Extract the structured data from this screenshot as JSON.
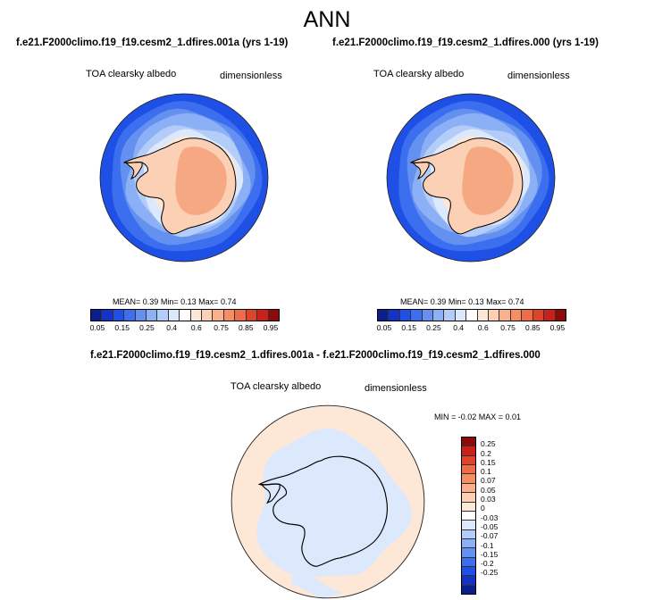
{
  "figure_title": "ANN",
  "panels": {
    "left": {
      "subtitle": "f.e21.F2000climo.f19_f19.cesm2_1.dfires.001a (yrs 1-19)",
      "variable": "TOA clearsky albedo",
      "units": "dimensionless",
      "stats": {
        "mean_label": "MEAN=",
        "mean": "0.39",
        "min_label": "Min=",
        "min": "0.13",
        "max_label": "Max=",
        "max": "0.74"
      }
    },
    "right": {
      "subtitle": "f.e21.F2000climo.f19_f19.cesm2_1.dfires.000 (yrs 1-19)",
      "variable": "TOA clearsky albedo",
      "units": "dimensionless",
      "stats": {
        "mean_label": "MEAN=",
        "mean": "0.39",
        "min_label": "Min=",
        "min": "0.13",
        "max_label": "Max=",
        "max": "0.74"
      }
    },
    "diff": {
      "subtitle": "f.e21.F2000climo.f19_f19.cesm2_1.dfires.001a - f.e21.F2000climo.f19_f19.cesm2_1.dfires.000",
      "variable": "TOA clearsky albedo",
      "units": "dimensionless",
      "minmax_text": "MIN =  -0.02 MAX =  0.01"
    }
  },
  "abs_colorbar": {
    "colors": [
      "#0a1e8c",
      "#1432c8",
      "#1e50e6",
      "#3c6ef0",
      "#6490f0",
      "#8cb0f5",
      "#b4cdf8",
      "#dce8fb",
      "#ffffff",
      "#fde8d8",
      "#fcd0b4",
      "#fab08c",
      "#f68e64",
      "#f06c46",
      "#e04428",
      "#c8201a",
      "#8c0a0a"
    ],
    "ticks": [
      "0.05",
      "0.15",
      "0.25",
      "0.4",
      "0.6",
      "0.75",
      "0.85",
      "0.95"
    ]
  },
  "diff_colorbar": {
    "colors": [
      "#8c0a0a",
      "#c8201a",
      "#e04428",
      "#f06c46",
      "#f68e64",
      "#fab08c",
      "#fcd0b4",
      "#fde8d8",
      "#ffffff",
      "#dce8fb",
      "#b4cdf8",
      "#8cb0f5",
      "#6490f0",
      "#3c6ef0",
      "#1e50e6",
      "#1432c8",
      "#0a1e8c"
    ],
    "ticks": [
      "0.25",
      "0.2",
      "0.15",
      "0.1",
      "0.07",
      "0.05",
      "0.03",
      "0",
      "-0.03",
      "-0.05",
      "-0.07",
      "-0.1",
      "-0.15",
      "-0.2",
      "-0.25"
    ]
  },
  "map_colors": {
    "ocean_1": "#1e50e6",
    "ocean_2": "#3c6ef0",
    "ocean_3": "#6490f0",
    "ocean_4": "#8cb0f5",
    "ocean_5": "#b4cdf8",
    "ocean_6": "#dce8fb",
    "shelf": "#fde8d8",
    "land_edge": "#fcd0b4",
    "land_high": "#f6a882",
    "diff_pos": "#fde8d8",
    "diff_neg": "#dce8fb"
  }
}
